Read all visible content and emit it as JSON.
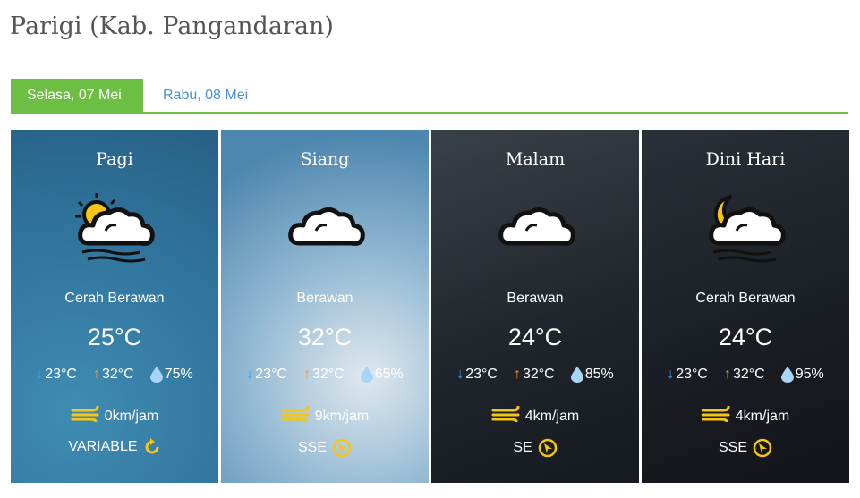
{
  "title": "Parigi (Kab. Pangandaran)",
  "tabs": [
    {
      "label": "Selasa, 07 Mei",
      "active": true
    },
    {
      "label": "Rabu, 08 Mei",
      "active": false
    }
  ],
  "colors": {
    "accent": "#6cbf42",
    "link": "#4a90d9",
    "icon_yellow": "#f5c518",
    "min_arrow": "#3a9ee8",
    "max_arrow": "#f39c32",
    "drop": "#a8d4f5"
  },
  "forecasts": [
    {
      "period": "Pagi",
      "icon": "sun-cloud-icon",
      "condition": "Cerah Berawan",
      "temp": "25°C",
      "min": "23°C",
      "max": "32°C",
      "humidity": "75%",
      "wind": "0km/jam",
      "direction": "VARIABLE",
      "direction_icon": "variable-wind-icon"
    },
    {
      "period": "Siang",
      "icon": "cloud-icon",
      "condition": "Berawan",
      "temp": "32°C",
      "min": "23°C",
      "max": "32°C",
      "humidity": "65%",
      "wind": "9km/jam",
      "direction": "SSE",
      "direction_icon": "compass-icon"
    },
    {
      "period": "Malam",
      "icon": "cloud-icon",
      "condition": "Berawan",
      "temp": "24°C",
      "min": "23°C",
      "max": "32°C",
      "humidity": "85%",
      "wind": "4km/jam",
      "direction": "SE",
      "direction_icon": "compass-icon"
    },
    {
      "period": "Dini Hari",
      "icon": "moon-cloud-icon",
      "condition": "Cerah Berawan",
      "temp": "24°C",
      "min": "23°C",
      "max": "32°C",
      "humidity": "95%",
      "wind": "4km/jam",
      "direction": "SSE",
      "direction_icon": "compass-icon"
    }
  ]
}
